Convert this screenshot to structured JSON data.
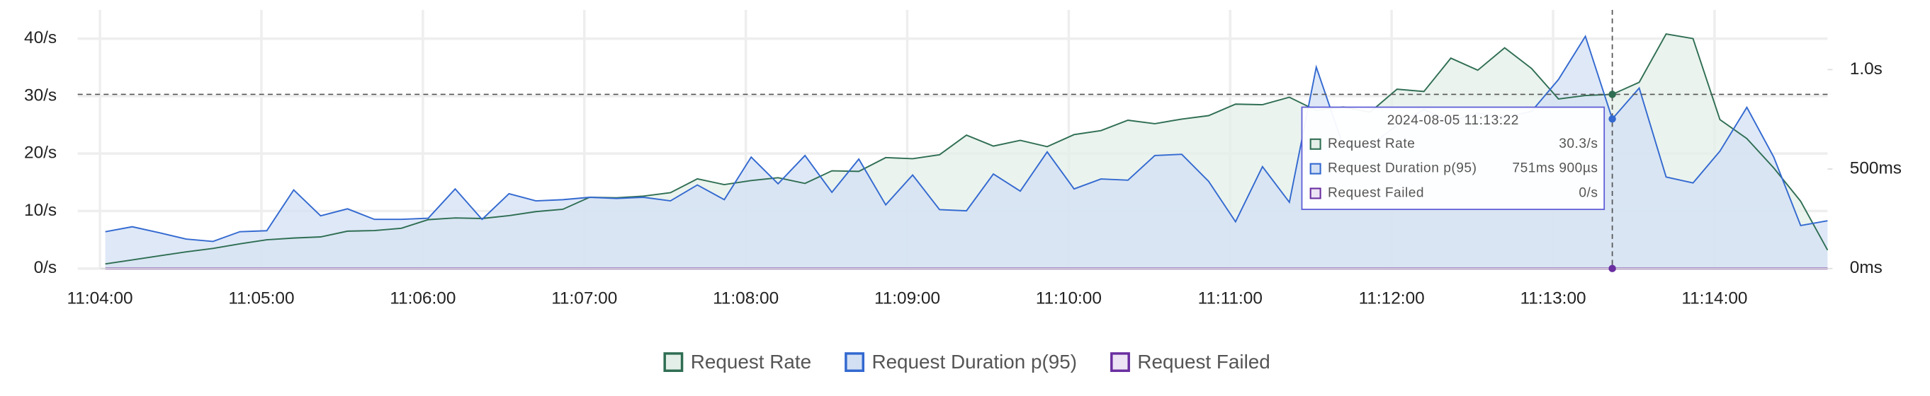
{
  "chart_data": {
    "type": "line",
    "x": [
      "11:04:02",
      "11:04:12",
      "11:04:22",
      "11:04:32",
      "11:04:42",
      "11:04:52",
      "11:05:02",
      "11:05:12",
      "11:05:22",
      "11:05:32",
      "11:05:42",
      "11:05:52",
      "11:06:02",
      "11:06:12",
      "11:06:22",
      "11:06:32",
      "11:06:42",
      "11:06:52",
      "11:07:02",
      "11:07:12",
      "11:07:22",
      "11:07:32",
      "11:07:42",
      "11:07:52",
      "11:08:02",
      "11:08:12",
      "11:08:22",
      "11:08:32",
      "11:08:42",
      "11:08:52",
      "11:09:02",
      "11:09:12",
      "11:09:22",
      "11:09:32",
      "11:09:42",
      "11:09:52",
      "11:10:02",
      "11:10:12",
      "11:10:22",
      "11:10:32",
      "11:10:42",
      "11:10:52",
      "11:11:02",
      "11:11:12",
      "11:11:22",
      "11:11:32",
      "11:11:42",
      "11:11:52",
      "11:12:02",
      "11:12:12",
      "11:12:22",
      "11:12:32",
      "11:12:42",
      "11:12:52",
      "11:13:02",
      "11:13:12",
      "11:13:22",
      "11:13:32",
      "11:13:42",
      "11:13:52",
      "11:14:02",
      "11:14:12",
      "11:14:22",
      "11:14:32",
      "11:14:42"
    ],
    "xlim": [
      "11:04:00",
      "11:14:42"
    ],
    "xticks": [
      "11:04:00",
      "11:05:00",
      "11:06:00",
      "11:07:00",
      "11:08:00",
      "11:09:00",
      "11:10:00",
      "11:11:00",
      "11:12:00",
      "11:13:00",
      "11:14:00"
    ],
    "ylim": [
      0,
      45
    ],
    "yticks": [
      {
        "value": 0,
        "label": "0/s"
      },
      {
        "value": 10,
        "label": "10/s"
      },
      {
        "value": 20,
        "label": "20/s"
      },
      {
        "value": 30,
        "label": "30/s"
      },
      {
        "value": 40,
        "label": "40/s"
      }
    ],
    "y2lim": [
      0,
      1.3
    ],
    "y2ticks": [
      {
        "value": 0,
        "label": "0ms"
      },
      {
        "value": 0.5,
        "label": "500ms"
      },
      {
        "value": 1,
        "label": "1.0s"
      }
    ],
    "grid": true,
    "legend": "bottom",
    "series": [
      {
        "name": "Request Rate",
        "color": "#2f6e53",
        "fill": "#e3efe8",
        "values": [
          0.8,
          1.5,
          2.2,
          2.9,
          3.5,
          4.3,
          5.0,
          5.3,
          5.5,
          6.5,
          6.6,
          7.0,
          8.5,
          8.8,
          8.7,
          9.2,
          9.9,
          10.3,
          12.4,
          12.3,
          12.6,
          13.2,
          15.6,
          14.6,
          15.3,
          15.8,
          14.8,
          17.0,
          16.9,
          19.3,
          19.1,
          19.8,
          23.2,
          21.3,
          22.3,
          21.2,
          23.3,
          24.0,
          25.8,
          25.2,
          26.0,
          26.6,
          28.6,
          28.5,
          29.8,
          27.5,
          28.1,
          27.2,
          31.2,
          30.8,
          36.6,
          34.5,
          38.4,
          34.8,
          29.5,
          30.1,
          30.3,
          32.4,
          40.8,
          40.0,
          25.9,
          22.6,
          17.5,
          11.7,
          3.2
        ]
      },
      {
        "name": "Request Duration p(95)",
        "color": "#3369d0",
        "fill": "#d3e0f4",
        "axis": "y2",
        "values": [
          0.185,
          0.21,
          0.18,
          0.148,
          0.136,
          0.185,
          0.19,
          0.395,
          0.265,
          0.3,
          0.247,
          0.247,
          0.253,
          0.4,
          0.247,
          0.376,
          0.34,
          0.346,
          0.358,
          0.352,
          0.358,
          0.34,
          0.42,
          0.346,
          0.56,
          0.426,
          0.568,
          0.383,
          0.55,
          0.32,
          0.47,
          0.296,
          0.29,
          0.475,
          0.389,
          0.586,
          0.4,
          0.45,
          0.444,
          0.568,
          0.574,
          0.438,
          0.235,
          0.512,
          0.333,
          1.012,
          0.617,
          0.617,
          0.72,
          0.8,
          0.74,
          0.78,
          0.76,
          0.79,
          0.95,
          1.167,
          0.7519,
          0.907,
          0.46,
          0.43,
          0.59,
          0.81,
          0.56,
          0.216,
          0.24
        ]
      },
      {
        "name": "Request Failed",
        "color": "#6a2ea0",
        "fill": "#ece3f4",
        "values": [
          0,
          0,
          0,
          0,
          0,
          0,
          0,
          0,
          0,
          0,
          0,
          0,
          0,
          0,
          0,
          0,
          0,
          0,
          0,
          0,
          0,
          0,
          0,
          0,
          0,
          0,
          0,
          0,
          0,
          0,
          0,
          0,
          0,
          0,
          0,
          0,
          0,
          0,
          0,
          0,
          0,
          0,
          0,
          0,
          0,
          0,
          0,
          0,
          0,
          0,
          0,
          0,
          0,
          0,
          0,
          0,
          0,
          0,
          0,
          0,
          0,
          0,
          0,
          0,
          0
        ]
      }
    ],
    "tooltip": {
      "title": "2024-08-05 11:13:22",
      "value_labels": [
        "30.3/s",
        "751ms 900µs",
        "0/s"
      ]
    }
  }
}
